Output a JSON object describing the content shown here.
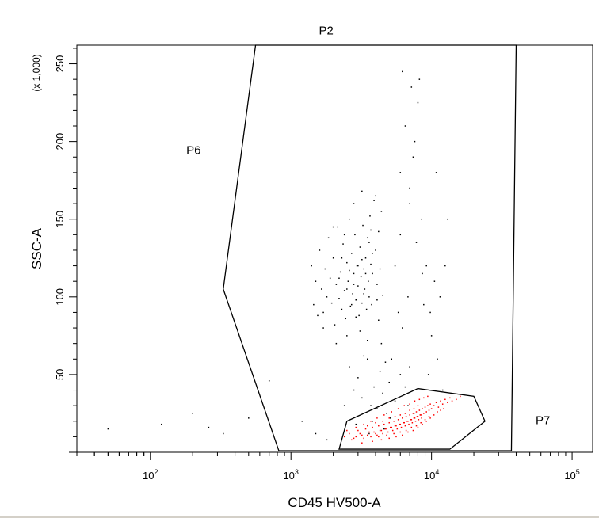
{
  "chart_data": {
    "type": "scatter",
    "title": "",
    "xlabel": "CD45 HV500-A",
    "ylabel": "SSC-A",
    "y_multiplier": "(x 1,000)",
    "x_scale": "log",
    "xlim": [
      30,
      140000
    ],
    "ylim": [
      0,
      262
    ],
    "x_ticks": [
      {
        "value": 100,
        "base": "10",
        "exp": "2"
      },
      {
        "value": 1000,
        "base": "10",
        "exp": "3"
      },
      {
        "value": 10000,
        "base": "10",
        "exp": "4"
      },
      {
        "value": 100000,
        "base": "10",
        "exp": "5"
      }
    ],
    "y_ticks": [
      {
        "value": 50,
        "label": "50"
      },
      {
        "value": 100,
        "label": "100"
      },
      {
        "value": 150,
        "label": "150"
      },
      {
        "value": 200,
        "label": "200"
      },
      {
        "value": 250,
        "label": "250"
      }
    ],
    "gates": [
      {
        "name": "P2",
        "label_at": [
          1580,
          269
        ],
        "color": "#000000",
        "points": [
          [
            560,
            262
          ],
          [
            40000,
            262
          ],
          [
            37000,
            1
          ],
          [
            820,
            1
          ],
          [
            330,
            105
          ]
        ]
      },
      {
        "name": "P6",
        "label_at": [
          180,
          192
        ],
        "color": "#000000",
        "points": []
      },
      {
        "name": "P7",
        "label_at": [
          55000,
          18
        ],
        "color": "#000000",
        "points": []
      },
      {
        "name": "",
        "label_at": null,
        "color": "#000000",
        "points": [
          [
            2200,
            2
          ],
          [
            13500,
            2
          ],
          [
            24000,
            20
          ],
          [
            20000,
            36
          ],
          [
            8000,
            41
          ],
          [
            2500,
            20
          ]
        ]
      }
    ],
    "series": [
      {
        "color": "#000000",
        "points": [
          [
            50,
            15
          ],
          [
            120,
            18
          ],
          [
            200,
            25
          ],
          [
            260,
            16
          ],
          [
            330,
            12
          ],
          [
            500,
            22
          ],
          [
            700,
            46
          ],
          [
            1200,
            20
          ],
          [
            1500,
            12
          ],
          [
            1800,
            8
          ],
          [
            1400,
            120
          ],
          [
            1450,
            95
          ],
          [
            1500,
            110
          ],
          [
            1550,
            88
          ],
          [
            1600,
            130
          ],
          [
            1650,
            105
          ],
          [
            1700,
            90
          ],
          [
            1750,
            118
          ],
          [
            1800,
            100
          ],
          [
            1850,
            138
          ],
          [
            1900,
            112
          ],
          [
            1950,
            96
          ],
          [
            2000,
            125
          ],
          [
            2050,
            82
          ],
          [
            2100,
            108
          ],
          [
            2150,
            145
          ],
          [
            2200,
            99
          ],
          [
            2250,
            116
          ],
          [
            2300,
            92
          ],
          [
            2350,
            134
          ],
          [
            2400,
            104
          ],
          [
            2450,
            86
          ],
          [
            2500,
            122
          ],
          [
            2550,
            110
          ],
          [
            2600,
            150
          ],
          [
            2650,
            94
          ],
          [
            2700,
            128
          ],
          [
            2750,
            102
          ],
          [
            2800,
            115
          ],
          [
            2850,
            140
          ],
          [
            2900,
            98
          ],
          [
            2950,
            120
          ],
          [
            3000,
            107
          ],
          [
            3050,
            88
          ],
          [
            3100,
            132
          ],
          [
            3150,
            113
          ],
          [
            3200,
            96
          ],
          [
            3250,
            146
          ],
          [
            3300,
            118
          ],
          [
            3350,
            105
          ],
          [
            3400,
            125
          ],
          [
            3450,
            92
          ],
          [
            3500,
            138
          ],
          [
            3550,
            110
          ],
          [
            3600,
            100
          ],
          [
            3650,
            152
          ],
          [
            3700,
            121
          ],
          [
            3750,
            95
          ],
          [
            3800,
            115
          ],
          [
            3900,
            162
          ],
          [
            4000,
            130
          ],
          [
            4100,
            108
          ],
          [
            4200,
            142
          ],
          [
            4300,
            118
          ],
          [
            4400,
            155
          ],
          [
            4500,
            101
          ],
          [
            3200,
            168
          ],
          [
            2800,
            160
          ],
          [
            4000,
            165
          ],
          [
            3700,
            143
          ],
          [
            2300,
            125
          ],
          [
            2600,
            117
          ],
          [
            2900,
            87
          ],
          [
            3100,
            78
          ],
          [
            2400,
            140
          ],
          [
            2000,
            145
          ],
          [
            1700,
            80
          ],
          [
            3500,
            72
          ],
          [
            4200,
            85
          ],
          [
            3300,
            102
          ],
          [
            2700,
            95
          ],
          [
            3400,
            115
          ],
          [
            3000,
            120
          ],
          [
            2500,
            105
          ],
          [
            3800,
            128
          ],
          [
            4100,
            98
          ],
          [
            2200,
            112
          ],
          [
            3600,
            135
          ],
          [
            2800,
            108
          ],
          [
            3200,
            124
          ],
          [
            2600,
            55
          ],
          [
            3000,
            48
          ],
          [
            3500,
            60
          ],
          [
            3900,
            42
          ],
          [
            4300,
            52
          ],
          [
            4700,
            58
          ],
          [
            3200,
            35
          ],
          [
            3700,
            30
          ],
          [
            4500,
            38
          ],
          [
            5000,
            45
          ],
          [
            2800,
            40
          ],
          [
            4100,
            28
          ],
          [
            5500,
            33
          ],
          [
            6000,
            50
          ],
          [
            6500,
            42
          ],
          [
            7000,
            55
          ],
          [
            3300,
            62
          ],
          [
            4800,
            25
          ],
          [
            2400,
            30
          ],
          [
            5200,
            60
          ],
          [
            2100,
            70
          ],
          [
            2500,
            75
          ],
          [
            4400,
            70
          ],
          [
            3800,
            20
          ],
          [
            4600,
            15
          ],
          [
            5100,
            22
          ],
          [
            3600,
            12
          ],
          [
            2900,
            18
          ],
          [
            6800,
            30
          ],
          [
            7500,
            25
          ],
          [
            6200,
            245
          ],
          [
            7200,
            235
          ],
          [
            8200,
            240
          ],
          [
            6500,
            210
          ],
          [
            7600,
            200
          ],
          [
            8000,
            225
          ],
          [
            6000,
            180
          ],
          [
            7000,
            170
          ],
          [
            8500,
            150
          ],
          [
            7800,
            135
          ],
          [
            9200,
            120
          ],
          [
            10500,
            110
          ],
          [
            6800,
            100
          ],
          [
            8800,
            95
          ],
          [
            10000,
            75
          ],
          [
            11000,
            60
          ],
          [
            9500,
            50
          ],
          [
            12000,
            40
          ],
          [
            7000,
            160
          ],
          [
            6000,
            140
          ],
          [
            5500,
            120
          ],
          [
            5800,
            90
          ],
          [
            6200,
            80
          ],
          [
            12500,
            120
          ],
          [
            13000,
            150
          ],
          [
            10800,
            180
          ],
          [
            7400,
            190
          ],
          [
            8600,
            115
          ],
          [
            9800,
            90
          ],
          [
            11500,
            100
          ]
        ]
      },
      {
        "color": "#ff0000",
        "points": [
          [
            2400,
            10
          ],
          [
            2600,
            12
          ],
          [
            2800,
            9
          ],
          [
            3000,
            14
          ],
          [
            3200,
            11
          ],
          [
            3400,
            15
          ],
          [
            3600,
            13
          ],
          [
            3800,
            16
          ],
          [
            4000,
            12
          ],
          [
            4200,
            17
          ],
          [
            4400,
            14
          ],
          [
            4600,
            18
          ],
          [
            4800,
            15
          ],
          [
            5000,
            19
          ],
          [
            5200,
            16
          ],
          [
            5400,
            20
          ],
          [
            5600,
            17
          ],
          [
            5800,
            21
          ],
          [
            6000,
            18
          ],
          [
            6200,
            22
          ],
          [
            6400,
            19
          ],
          [
            6600,
            23
          ],
          [
            6800,
            20
          ],
          [
            7000,
            24
          ],
          [
            7200,
            21
          ],
          [
            7400,
            25
          ],
          [
            7600,
            22
          ],
          [
            7800,
            26
          ],
          [
            8000,
            23
          ],
          [
            8200,
            27
          ],
          [
            8400,
            24
          ],
          [
            8600,
            28
          ],
          [
            8800,
            25
          ],
          [
            9000,
            29
          ],
          [
            9200,
            26
          ],
          [
            9400,
            30
          ],
          [
            9600,
            27
          ],
          [
            9800,
            31
          ],
          [
            10000,
            28
          ],
          [
            10400,
            30
          ],
          [
            10800,
            32
          ],
          [
            11200,
            29
          ],
          [
            11600,
            33
          ],
          [
            12000,
            31
          ],
          [
            12500,
            34
          ],
          [
            13000,
            32
          ],
          [
            13500,
            35
          ],
          [
            14000,
            33
          ],
          [
            15000,
            34
          ],
          [
            16000,
            36
          ],
          [
            2700,
            8
          ],
          [
            2900,
            10
          ],
          [
            3100,
            12
          ],
          [
            3300,
            9
          ],
          [
            3500,
            11
          ],
          [
            3700,
            10
          ],
          [
            3900,
            13
          ],
          [
            4100,
            11
          ],
          [
            4300,
            14
          ],
          [
            4500,
            12
          ],
          [
            4700,
            15
          ],
          [
            4900,
            13
          ],
          [
            5100,
            16
          ],
          [
            5300,
            14
          ],
          [
            5500,
            17
          ],
          [
            5700,
            15
          ],
          [
            5900,
            18
          ],
          [
            6100,
            16
          ],
          [
            6300,
            19
          ],
          [
            6500,
            17
          ],
          [
            6700,
            20
          ],
          [
            6900,
            18
          ],
          [
            7100,
            21
          ],
          [
            7300,
            19
          ],
          [
            7500,
            22
          ],
          [
            7700,
            20
          ],
          [
            7900,
            23
          ],
          [
            8100,
            21
          ],
          [
            8300,
            24
          ],
          [
            8500,
            22
          ],
          [
            3500,
            17
          ],
          [
            4000,
            19
          ],
          [
            4500,
            20
          ],
          [
            5000,
            22
          ],
          [
            5500,
            23
          ],
          [
            6000,
            24
          ],
          [
            6500,
            25
          ],
          [
            7000,
            27
          ],
          [
            7500,
            28
          ],
          [
            8000,
            30
          ],
          [
            3200,
            6
          ],
          [
            3800,
            7
          ],
          [
            4400,
            8
          ],
          [
            5000,
            9
          ],
          [
            5600,
            10
          ],
          [
            6200,
            11
          ],
          [
            6800,
            13
          ],
          [
            7400,
            14
          ],
          [
            8000,
            16
          ],
          [
            8600,
            18
          ],
          [
            9200,
            20
          ],
          [
            9800,
            22
          ],
          [
            10400,
            24
          ],
          [
            11000,
            26
          ],
          [
            11600,
            27
          ],
          [
            12200,
            28
          ],
          [
            2500,
            14
          ],
          [
            2900,
            16
          ],
          [
            3300,
            18
          ],
          [
            3700,
            20
          ],
          [
            4100,
            22
          ],
          [
            4600,
            24
          ],
          [
            5200,
            26
          ],
          [
            5800,
            28
          ],
          [
            6400,
            30
          ],
          [
            7000,
            31
          ],
          [
            7600,
            33
          ],
          [
            8200,
            34
          ],
          [
            8800,
            35
          ],
          [
            9400,
            36
          ],
          [
            4200,
            10
          ],
          [
            4800,
            11
          ],
          [
            5400,
            12
          ],
          [
            6000,
            13
          ],
          [
            6600,
            14
          ],
          [
            7200,
            16
          ],
          [
            7800,
            17
          ],
          [
            8400,
            19
          ],
          [
            9000,
            21
          ],
          [
            9600,
            23
          ]
        ]
      }
    ]
  }
}
